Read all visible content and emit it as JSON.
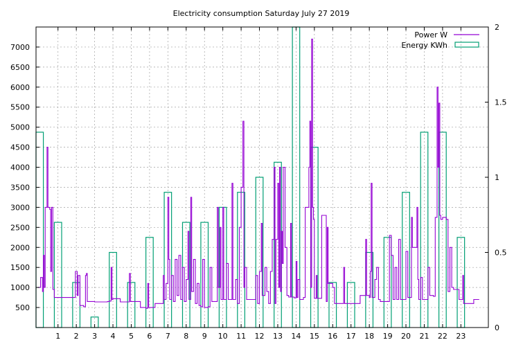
{
  "chart_data": {
    "type": "line",
    "title": "Electricity consumption Saturday July 27 2019",
    "xlabel": "",
    "ylabel": "",
    "xlim": [
      -0.2,
      24.5
    ],
    "ylim": [
      0,
      7500
    ],
    "y2lim": [
      0,
      2
    ],
    "grid": true,
    "legend_position": "top-right",
    "x_ticks": [
      "1",
      "2",
      "3",
      "4",
      "5",
      "6",
      "7",
      "8",
      "9",
      "10",
      "11",
      "12",
      "13",
      "14",
      "15",
      "16",
      "17",
      "18",
      "19",
      "20",
      "21",
      "22",
      "23"
    ],
    "y_ticks": [
      "500",
      "1000",
      "1500",
      "2000",
      "2500",
      "3000",
      "3500",
      "4000",
      "4500",
      "5000",
      "5500",
      "6000",
      "6500",
      "7000"
    ],
    "y2_ticks": [
      "0",
      "0.5",
      "1",
      "1.5",
      "2"
    ],
    "series": [
      {
        "name": "Power W",
        "axis": "left",
        "color": "#9400d3",
        "style": "line",
        "points": [
          [
            -0.1,
            1000
          ],
          [
            0.05,
            1250
          ],
          [
            0.15,
            900
          ],
          [
            0.2,
            1800
          ],
          [
            0.25,
            1000
          ],
          [
            0.3,
            3000
          ],
          [
            0.4,
            4500
          ],
          [
            0.45,
            3000
          ],
          [
            0.55,
            2950
          ],
          [
            0.6,
            1400
          ],
          [
            0.65,
            3000
          ],
          [
            0.72,
            950
          ],
          [
            0.8,
            750
          ],
          [
            1.0,
            750
          ],
          [
            1.5,
            750
          ],
          [
            1.9,
            750
          ],
          [
            1.95,
            1400
          ],
          [
            2.05,
            800
          ],
          [
            2.1,
            1300
          ],
          [
            2.2,
            550
          ],
          [
            2.4,
            520
          ],
          [
            2.5,
            1300
          ],
          [
            2.55,
            1350
          ],
          [
            2.6,
            650
          ],
          [
            3.0,
            640
          ],
          [
            3.5,
            640
          ],
          [
            3.7,
            650
          ],
          [
            3.8,
            660
          ],
          [
            3.9,
            1500
          ],
          [
            3.95,
            700
          ],
          [
            4.0,
            720
          ],
          [
            4.3,
            720
          ],
          [
            4.4,
            640
          ],
          [
            4.8,
            640
          ],
          [
            4.9,
            1350
          ],
          [
            4.95,
            650
          ],
          [
            5.2,
            650
          ],
          [
            5.4,
            650
          ],
          [
            5.5,
            500
          ],
          [
            5.8,
            480
          ],
          [
            5.9,
            1100
          ],
          [
            5.95,
            500
          ],
          [
            6.2,
            500
          ],
          [
            6.3,
            600
          ],
          [
            6.7,
            600
          ],
          [
            6.75,
            1300
          ],
          [
            6.8,
            700
          ],
          [
            6.9,
            1100
          ],
          [
            7.0,
            3250
          ],
          [
            7.05,
            1700
          ],
          [
            7.1,
            700
          ],
          [
            7.2,
            1300
          ],
          [
            7.3,
            650
          ],
          [
            7.4,
            1700
          ],
          [
            7.5,
            800
          ],
          [
            7.6,
            1800
          ],
          [
            7.7,
            700
          ],
          [
            7.8,
            1500
          ],
          [
            7.9,
            650
          ],
          [
            8.0,
            1200
          ],
          [
            8.1,
            2400
          ],
          [
            8.15,
            700
          ],
          [
            8.25,
            3250
          ],
          [
            8.3,
            900
          ],
          [
            8.4,
            1700
          ],
          [
            8.5,
            600
          ],
          [
            8.6,
            1100
          ],
          [
            8.7,
            550
          ],
          [
            8.8,
            520
          ],
          [
            8.9,
            1700
          ],
          [
            9.0,
            500
          ],
          [
            9.2,
            520
          ],
          [
            9.3,
            1500
          ],
          [
            9.4,
            650
          ],
          [
            9.6,
            650
          ],
          [
            9.7,
            3000
          ],
          [
            9.75,
            1000
          ],
          [
            9.85,
            2500
          ],
          [
            9.9,
            700
          ],
          [
            10.0,
            3000
          ],
          [
            10.05,
            700
          ],
          [
            10.2,
            1600
          ],
          [
            10.3,
            700
          ],
          [
            10.5,
            3600
          ],
          [
            10.55,
            700
          ],
          [
            10.7,
            1200
          ],
          [
            10.8,
            600
          ],
          [
            10.9,
            2500
          ],
          [
            11.0,
            3500
          ],
          [
            11.1,
            5150
          ],
          [
            11.15,
            1000
          ],
          [
            11.2,
            1500
          ],
          [
            11.3,
            700
          ],
          [
            11.6,
            700
          ],
          [
            11.8,
            1300
          ],
          [
            11.9,
            600
          ],
          [
            12.0,
            1400
          ],
          [
            12.1,
            2600
          ],
          [
            12.15,
            800
          ],
          [
            12.3,
            1500
          ],
          [
            12.4,
            900
          ],
          [
            12.5,
            600
          ],
          [
            12.6,
            1400
          ],
          [
            12.7,
            2200
          ],
          [
            12.8,
            4000
          ],
          [
            12.85,
            600
          ],
          [
            12.9,
            2200
          ],
          [
            13.0,
            3600
          ],
          [
            13.05,
            1000
          ],
          [
            13.1,
            4000
          ],
          [
            13.15,
            900
          ],
          [
            13.2,
            2400
          ],
          [
            13.25,
            1600
          ],
          [
            13.3,
            4000
          ],
          [
            13.4,
            2000
          ],
          [
            13.5,
            800
          ],
          [
            13.6,
            760
          ],
          [
            13.7,
            2600
          ],
          [
            13.75,
            760
          ],
          [
            13.9,
            740
          ],
          [
            14.0,
            1650
          ],
          [
            14.05,
            750
          ],
          [
            14.1,
            1200
          ],
          [
            14.2,
            700
          ],
          [
            14.4,
            750
          ],
          [
            14.5,
            3000
          ],
          [
            14.6,
            3000
          ],
          [
            14.7,
            4000
          ],
          [
            14.75,
            5150
          ],
          [
            14.8,
            1000
          ],
          [
            14.85,
            7200
          ],
          [
            14.9,
            3000
          ],
          [
            14.95,
            2700
          ],
          [
            15.0,
            730
          ],
          [
            15.1,
            1300
          ],
          [
            15.15,
            730
          ],
          [
            15.3,
            730
          ],
          [
            15.4,
            2800
          ],
          [
            15.6,
            2800
          ],
          [
            15.65,
            650
          ],
          [
            15.7,
            2500
          ],
          [
            15.75,
            1100
          ],
          [
            16.0,
            1000
          ],
          [
            16.1,
            600
          ],
          [
            16.5,
            600
          ],
          [
            16.6,
            1500
          ],
          [
            16.65,
            600
          ],
          [
            17.0,
            600
          ],
          [
            17.3,
            600
          ],
          [
            17.5,
            800
          ],
          [
            17.7,
            800
          ],
          [
            17.8,
            2200
          ],
          [
            17.85,
            800
          ],
          [
            18.0,
            750
          ],
          [
            18.05,
            1400
          ],
          [
            18.1,
            3600
          ],
          [
            18.15,
            750
          ],
          [
            18.3,
            1200
          ],
          [
            18.4,
            1500
          ],
          [
            18.5,
            700
          ],
          [
            18.6,
            650
          ],
          [
            19.0,
            650
          ],
          [
            19.1,
            2300
          ],
          [
            19.2,
            1800
          ],
          [
            19.3,
            700
          ],
          [
            19.4,
            1500
          ],
          [
            19.5,
            700
          ],
          [
            19.6,
            2200
          ],
          [
            19.7,
            700
          ],
          [
            19.8,
            700
          ],
          [
            20.0,
            1900
          ],
          [
            20.1,
            750
          ],
          [
            20.3,
            2750
          ],
          [
            20.35,
            2000
          ],
          [
            20.5,
            2000
          ],
          [
            20.6,
            3000
          ],
          [
            20.65,
            1200
          ],
          [
            20.7,
            700
          ],
          [
            20.8,
            1250
          ],
          [
            20.9,
            700
          ],
          [
            21.1,
            700
          ],
          [
            21.2,
            1500
          ],
          [
            21.3,
            800
          ],
          [
            21.5,
            780
          ],
          [
            21.6,
            2750
          ],
          [
            21.7,
            6000
          ],
          [
            21.75,
            4000
          ],
          [
            21.8,
            5600
          ],
          [
            21.85,
            2800
          ],
          [
            21.9,
            2700
          ],
          [
            22.0,
            2750
          ],
          [
            22.1,
            2750
          ],
          [
            22.2,
            2700
          ],
          [
            22.3,
            900
          ],
          [
            22.4,
            2000
          ],
          [
            22.5,
            1000
          ],
          [
            22.6,
            950
          ],
          [
            22.8,
            950
          ],
          [
            22.9,
            700
          ],
          [
            23.0,
            700
          ],
          [
            23.1,
            1300
          ],
          [
            23.15,
            600
          ],
          [
            23.5,
            600
          ],
          [
            23.7,
            700
          ],
          [
            24.0,
            700
          ]
        ]
      },
      {
        "name": "Energy KWh",
        "axis": "right",
        "color": "#009e73",
        "style": "boxes",
        "boxes": [
          [
            0,
            1.3
          ],
          [
            1,
            0.7
          ],
          [
            2,
            0.3
          ],
          [
            3,
            0.07
          ],
          [
            4,
            0.5
          ],
          [
            5,
            0.3
          ],
          [
            6,
            0.6
          ],
          [
            7,
            0.9
          ],
          [
            8,
            0.7
          ],
          [
            9,
            0.7
          ],
          [
            10,
            0.8
          ],
          [
            11,
            0.9
          ],
          [
            12,
            1.0
          ],
          [
            13,
            1.1
          ],
          [
            14,
            2.0
          ],
          [
            15,
            1.2
          ],
          [
            16,
            0.3
          ],
          [
            17,
            0.3
          ],
          [
            18,
            0.5
          ],
          [
            19,
            0.6
          ],
          [
            20,
            0.9
          ],
          [
            21,
            1.3
          ],
          [
            22,
            1.3
          ],
          [
            23,
            0.6
          ]
        ]
      }
    ]
  }
}
